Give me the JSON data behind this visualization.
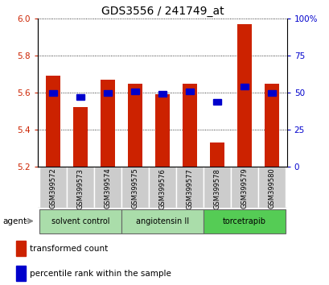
{
  "title": "GDS3556 / 241749_at",
  "samples": [
    "GSM399572",
    "GSM399573",
    "GSM399574",
    "GSM399575",
    "GSM399576",
    "GSM399577",
    "GSM399578",
    "GSM399579",
    "GSM399580"
  ],
  "red_values": [
    5.69,
    5.52,
    5.67,
    5.65,
    5.59,
    5.65,
    5.33,
    5.97,
    5.65
  ],
  "blue_values": [
    50,
    47,
    50,
    51,
    49,
    51,
    44,
    54,
    50
  ],
  "bar_bottom": 5.2,
  "ylim_left": [
    5.2,
    6.0
  ],
  "ylim_right": [
    0,
    100
  ],
  "yticks_left": [
    5.2,
    5.4,
    5.6,
    5.8,
    6.0
  ],
  "yticks_right": [
    0,
    25,
    50,
    75,
    100
  ],
  "ytick_labels_right": [
    "0",
    "25",
    "50",
    "75",
    "100%"
  ],
  "groups": [
    {
      "label": "solvent control",
      "samples": [
        0,
        1,
        2
      ],
      "color": "#aaddaa"
    },
    {
      "label": "angiotensin II",
      "samples": [
        3,
        4,
        5
      ],
      "color": "#aaddaa"
    },
    {
      "label": "torcetrapib",
      "samples": [
        6,
        7,
        8
      ],
      "color": "#55cc55"
    }
  ],
  "bar_color": "#cc2200",
  "blue_color": "#0000cc",
  "bar_width": 0.55,
  "agent_label": "agent",
  "legend_red": "transformed count",
  "legend_blue": "percentile rank within the sample",
  "tick_label_color_left": "#cc2200",
  "tick_label_color_right": "#0000cc",
  "sample_box_color": "#cccccc",
  "group_border_color": "#666666"
}
